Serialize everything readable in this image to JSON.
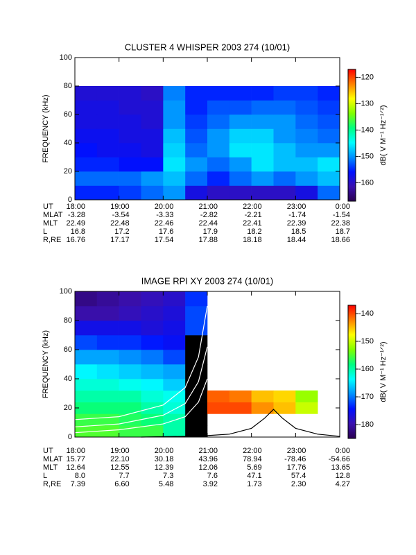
{
  "chart_data": [
    {
      "type": "spectrogram",
      "title": "CLUSTER 4 WHISPER 2003 274 (10/01)",
      "y_label": "FREQUENCY (kHz)",
      "colorbar_label": "dB( V M⁻¹ Hz⁻¹ᐟ²)",
      "xlim": [
        18,
        24
      ],
      "xticks": [
        {
          "value": 18,
          "label": "18:00"
        },
        {
          "value": 19,
          "label": "19:00"
        },
        {
          "value": 20,
          "label": "20:00"
        },
        {
          "value": 21,
          "label": "21:00"
        },
        {
          "value": 22,
          "label": "22:00"
        },
        {
          "value": 23,
          "label": "23:00"
        },
        {
          "value": 24,
          "label": "0:00"
        }
      ],
      "ylim": [
        0,
        100
      ],
      "yticks": [
        0,
        20,
        40,
        60,
        80,
        100
      ],
      "clim": [
        -167,
        -117
      ],
      "cticks": [
        -160,
        -150,
        -140,
        -130,
        -120
      ],
      "colormap": [
        "#2a0050",
        "#3a10b0",
        "#0010ff",
        "#0090ff",
        "#00ffff",
        "#00ff80",
        "#80ff00",
        "#ffff00",
        "#ff8000",
        "#ff0000"
      ],
      "below_color": "#000000",
      "time_bins": [
        18,
        18.5,
        19,
        19.5,
        20,
        20.5,
        21,
        21.5,
        22,
        22.5,
        23,
        23.5,
        24
      ],
      "freq_bins": [
        0,
        10,
        20,
        30,
        40,
        50,
        60,
        70,
        80
      ],
      "z": [
        [
          -155,
          -155,
          -154,
          -152,
          -150,
          -158,
          -160,
          -160,
          -160,
          -160,
          -158,
          -152
        ],
        [
          -152,
          -152,
          -152,
          -150,
          -148,
          -152,
          -155,
          -152,
          -150,
          -152,
          -150,
          -148
        ],
        [
          -155,
          -155,
          -156,
          -156,
          -146,
          -150,
          -152,
          -150,
          -146,
          -148,
          -148,
          -146
        ],
        [
          -156,
          -157,
          -157,
          -158,
          -147,
          -152,
          -150,
          -146,
          -146,
          -148,
          -150,
          -150
        ],
        [
          -157,
          -157,
          -158,
          -158,
          -148,
          -153,
          -150,
          -147,
          -147,
          -150,
          -151,
          -152
        ],
        [
          -158,
          -158,
          -158,
          -159,
          -150,
          -154,
          -152,
          -150,
          -150,
          -150,
          -152,
          -153
        ],
        [
          -158,
          -158,
          -159,
          -159,
          -150,
          -155,
          -153,
          -153,
          -152,
          -152,
          -153,
          -154
        ],
        [
          -159,
          -159,
          -159,
          -160,
          -151,
          -155,
          -155,
          -155,
          -155,
          -154,
          -154,
          -155
        ]
      ],
      "overlays": [],
      "table": {
        "row_labels": [
          "UT",
          "MLAT",
          "MLT",
          "L",
          "R,RE"
        ],
        "rows": [
          [
            "-3.28",
            "-3.54",
            "-3.33",
            "-2.82",
            "-2.21",
            "-1.74",
            "-1.54"
          ],
          [
            "22.49",
            "22.48",
            "22.46",
            "22.44",
            "22.41",
            "22.39",
            "22.38"
          ],
          [
            "16.8",
            "17.2",
            "17.6",
            "17.9",
            "18.2",
            "18.5",
            "18.7"
          ],
          [
            "16.76",
            "17.17",
            "17.54",
            "17.88",
            "18.18",
            "18.44",
            "18.66"
          ]
        ]
      }
    },
    {
      "type": "spectrogram",
      "title": "IMAGE RPI XY 2003 274 (10/01)",
      "y_label": "FREQUENCY (kHz)",
      "colorbar_label": "dB( V M⁻¹ Hz⁻¹ᐟ²)",
      "xlim": [
        18,
        24
      ],
      "xticks": [
        {
          "value": 18,
          "label": "18:00"
        },
        {
          "value": 19,
          "label": "19:00"
        },
        {
          "value": 20,
          "label": "20:00"
        },
        {
          "value": 21,
          "label": "21:00"
        },
        {
          "value": 22,
          "label": "22:00"
        },
        {
          "value": 23,
          "label": "23:00"
        },
        {
          "value": 24,
          "label": "0:00"
        }
      ],
      "ylim": [
        0,
        100
      ],
      "yticks": [
        0,
        20,
        40,
        60,
        80,
        100
      ],
      "clim": [
        -185,
        -137
      ],
      "cticks": [
        -180,
        -170,
        -160,
        -150,
        -140
      ],
      "colormap": [
        "#2a0050",
        "#3a10b0",
        "#0010ff",
        "#0090ff",
        "#00ffff",
        "#00ff80",
        "#80ff00",
        "#ffff00",
        "#ff8000",
        "#ff0000"
      ],
      "below_color": "#000000",
      "time_bins": [
        18,
        18.5,
        19,
        19.5,
        20,
        20.5,
        21,
        21.5,
        22,
        22.5,
        23,
        23.5,
        24
      ],
      "freq_bins": [
        0,
        8,
        16,
        24,
        32,
        40,
        50,
        60,
        70,
        80,
        90,
        100
      ],
      "z": [
        [
          -155,
          -155,
          -156,
          -156,
          -160,
          -190,
          null,
          null,
          null,
          null,
          null,
          null
        ],
        [
          -156,
          -156,
          -157,
          -158,
          -160,
          -190,
          null,
          null,
          null,
          null,
          null,
          null
        ],
        [
          -158,
          -158,
          -158,
          -160,
          -162,
          -190,
          -140,
          -140,
          -143,
          -145,
          -150,
          null
        ],
        [
          -160,
          -160,
          -160,
          -162,
          -163,
          -190,
          -141,
          -142,
          -145,
          -146,
          -152,
          null
        ],
        [
          -162,
          -162,
          -163,
          -164,
          -166,
          -190,
          null,
          null,
          null,
          null,
          null,
          null
        ],
        [
          -164,
          -165,
          -166,
          -167,
          -168,
          -190,
          null,
          null,
          null,
          null,
          null,
          null
        ],
        [
          -168,
          -168,
          -169,
          -170,
          -172,
          -190,
          null,
          null,
          null,
          null,
          null,
          null
        ],
        [
          -172,
          -173,
          -173,
          -174,
          -175,
          -190,
          null,
          null,
          null,
          null,
          null,
          null
        ],
        [
          -176,
          -176,
          -176,
          -177,
          -176,
          -172,
          null,
          null,
          null,
          null,
          null,
          null
        ],
        [
          -180,
          -180,
          -179,
          -178,
          -177,
          -172,
          null,
          null,
          null,
          null,
          null,
          null
        ],
        [
          -182,
          -181,
          -180,
          -179,
          -178,
          -173,
          null,
          null,
          null,
          null,
          null,
          null
        ]
      ],
      "overlays": [
        {
          "color": "#ffffff",
          "x": [
            18,
            19,
            20,
            20.5,
            20.8,
            21
          ],
          "y": [
            12,
            14,
            22,
            34,
            55,
            90
          ]
        },
        {
          "color": "#ffffff",
          "x": [
            18,
            19,
            20,
            20.5,
            20.8,
            21
          ],
          "y": [
            7,
            9,
            15,
            23,
            38,
            62
          ]
        },
        {
          "color": "#ffffff",
          "x": [
            18,
            19,
            20,
            20.5,
            20.8,
            21
          ],
          "y": [
            3,
            5,
            9,
            14,
            24,
            40
          ]
        },
        {
          "color": "#000000",
          "x": [
            19.5,
            20.5,
            21,
            21.5,
            22,
            22.3,
            22.5,
            22.7,
            23,
            23.5,
            24
          ],
          "y": [
            0,
            0.5,
            1,
            2,
            6,
            13,
            19,
            13,
            6,
            2,
            0.5
          ]
        }
      ],
      "table": {
        "row_labels": [
          "UT",
          "MLAT",
          "MLT",
          "L",
          "R,RE"
        ],
        "rows": [
          [
            "15.77",
            "22.10",
            "30.18",
            "43.96",
            "78.94",
            "-78.46",
            "-54.66"
          ],
          [
            "12.64",
            "12.55",
            "12.39",
            "12.06",
            "5.69",
            "17.76",
            "13.65"
          ],
          [
            "8.0",
            "7.7",
            "7.3",
            "7.6",
            "47.1",
            "57.4",
            "12.8"
          ],
          [
            "7.39",
            "6.60",
            "5.48",
            "3.92",
            "1.73",
            "2.30",
            "4.27"
          ]
        ]
      }
    }
  ]
}
